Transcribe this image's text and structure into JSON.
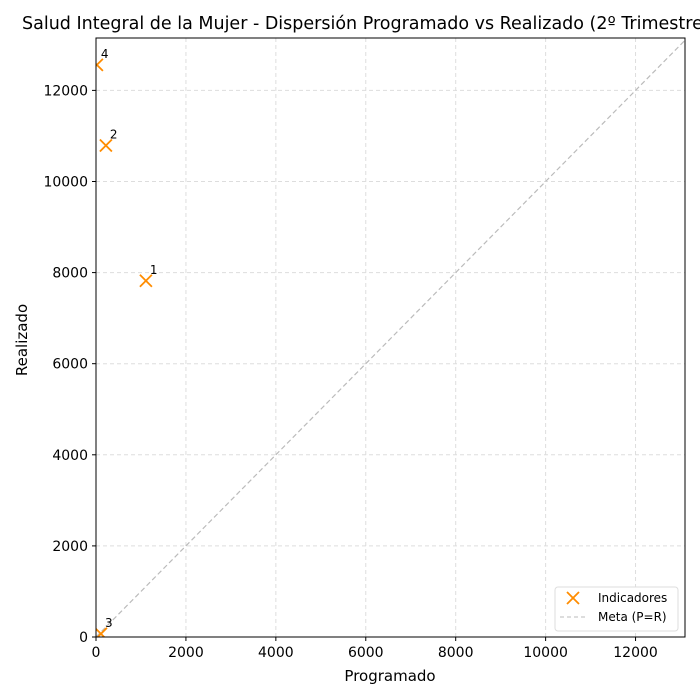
{
  "chart_data": {
    "type": "scatter",
    "title": "Salud Integral de la Mujer - Dispersión Programado vs Realizado (2º Trimestre",
    "xlabel": "Programado",
    "ylabel": "Realizado",
    "xlim": [
      0,
      13100
    ],
    "ylim": [
      0,
      13150
    ],
    "xticks": [
      "0",
      "2000",
      "4000",
      "6000",
      "8000",
      "10000",
      "12000"
    ],
    "yticks": [
      "0",
      "2000",
      "4000",
      "6000",
      "8000",
      "10000",
      "12000"
    ],
    "grid": true,
    "legend_position": "bottom-right",
    "series": [
      {
        "name": "Indicadores",
        "marker": "x",
        "color": "#ff8c00",
        "points": [
          {
            "label": "1",
            "x": 1110,
            "y": 7820
          },
          {
            "label": "2",
            "x": 220,
            "y": 10790
          },
          {
            "label": "3",
            "x": 110,
            "y": 70
          },
          {
            "label": "4",
            "x": 20,
            "y": 12560
          }
        ]
      },
      {
        "name": "Meta (P=R)",
        "style": "dashed",
        "color": "#bbbbbb",
        "line": [
          [
            0,
            0
          ],
          [
            13150,
            13150
          ]
        ]
      }
    ]
  }
}
